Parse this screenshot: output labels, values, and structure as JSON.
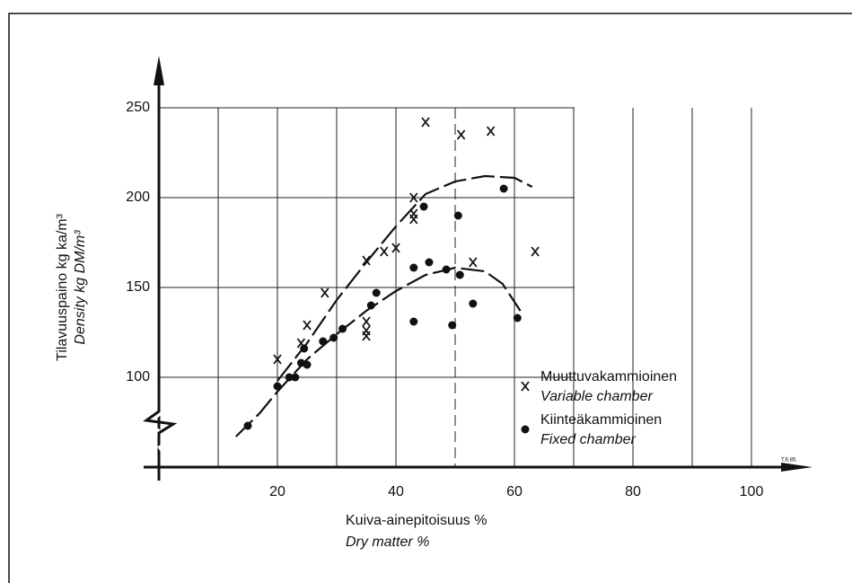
{
  "chart_data": {
    "type": "scatter",
    "ylabel": "Tilavuuspaino kg ka/m³",
    "ylabel_en": "Density kg DM/m³",
    "xlabel": "Kuiva-ainepitoisuus %",
    "xlabel_en": "Dry matter %",
    "annotation": "T.6.85.",
    "xlim": [
      0,
      110
    ],
    "ylim": [
      50,
      275
    ],
    "xticks": [
      20,
      40,
      60,
      80,
      100
    ],
    "xminor": [
      10,
      30,
      50,
      70,
      90
    ],
    "yticks": [
      100,
      150,
      200,
      250
    ],
    "grid": true,
    "legend": "lower right",
    "series": [
      {
        "name": "Muuttuvakammioinen",
        "name_en": "Variable chamber",
        "marker": "x",
        "color": "#111",
        "x": [
          20,
          24,
          25,
          28,
          35,
          35,
          35,
          35,
          38,
          40,
          43,
          43,
          43,
          45,
          51,
          53,
          56,
          63.5
        ],
        "values": [
          110,
          119,
          129,
          147,
          165,
          131,
          126,
          123,
          170,
          172,
          188,
          191,
          200,
          242,
          235,
          164,
          237,
          170
        ]
      },
      {
        "name": "Kiinteäkammioinen",
        "name_en": "Fixed chamber",
        "marker": "o",
        "color": "#111",
        "x": [
          15,
          20,
          22,
          23,
          24,
          24.5,
          25,
          27.7,
          29.5,
          31,
          35.8,
          36.7,
          43,
          43,
          45.6,
          44.7,
          48.5,
          49.5,
          50.5,
          50.8,
          53,
          58.2,
          60.5
        ],
        "values": [
          73,
          95,
          100,
          100,
          108,
          116,
          107,
          120,
          122,
          127,
          140,
          147,
          161,
          131,
          164,
          195,
          160,
          129,
          190,
          157,
          141,
          205,
          133
        ]
      }
    ],
    "fits": [
      {
        "x": [
          20,
          25,
          30,
          35,
          40,
          45,
          50,
          55,
          60,
          63
        ],
        "values": [
          98,
          119,
          143,
          164,
          184,
          202,
          209,
          212,
          211,
          206
        ]
      },
      {
        "x": [
          13,
          17,
          20,
          25,
          30,
          35,
          40,
          45,
          50,
          55,
          58,
          61
        ],
        "values": [
          67,
          80,
          92,
          110,
          124,
          137,
          148,
          157,
          161,
          159,
          152,
          137
        ]
      }
    ]
  }
}
